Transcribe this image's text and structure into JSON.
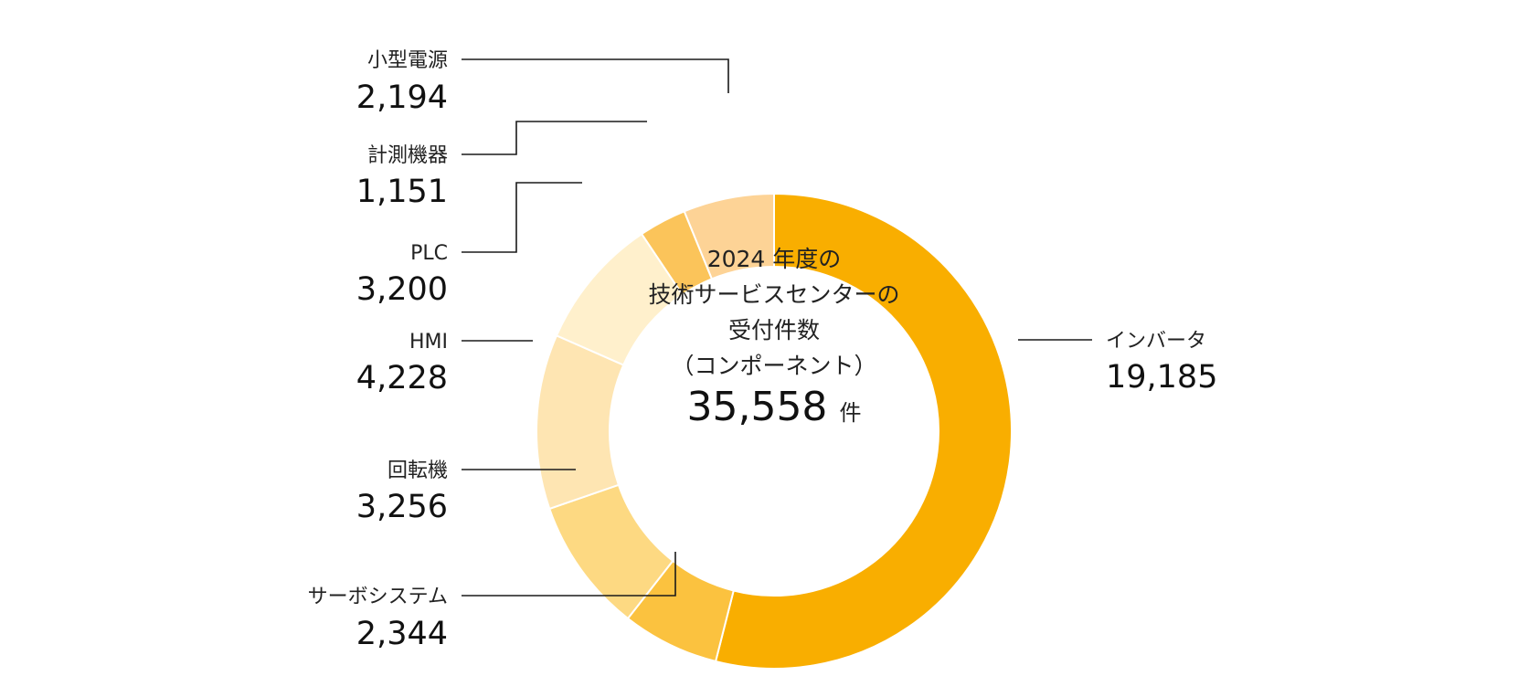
{
  "chart_data": {
    "type": "pie",
    "donut": true,
    "center": {
      "lines": [
        "2024 年度の",
        "技術サービスセンターの",
        "受付件数",
        "（コンポーネント）"
      ],
      "total": "35,558",
      "unit": "件"
    },
    "slices": [
      {
        "label": "インバータ",
        "value": 19185,
        "display": "19,185",
        "color": "#F9AE00"
      },
      {
        "label": "サーボシステム",
        "value": 2344,
        "display": "2,344",
        "color": "#FBC23F"
      },
      {
        "label": "回転機",
        "value": 3256,
        "display": "3,256",
        "color": "#FDD982"
      },
      {
        "label": "HMI",
        "value": 4228,
        "display": "4,228",
        "color": "#FEE5B2"
      },
      {
        "label": "PLC",
        "value": 3200,
        "display": "3,200",
        "color": "#FFF0CC"
      },
      {
        "label": "計測機器",
        "value": 1151,
        "display": "1,151",
        "color": "#FBC45A"
      },
      {
        "label": "小型電源",
        "value": 2194,
        "display": "2,194",
        "color": "#FDD396"
      }
    ]
  }
}
